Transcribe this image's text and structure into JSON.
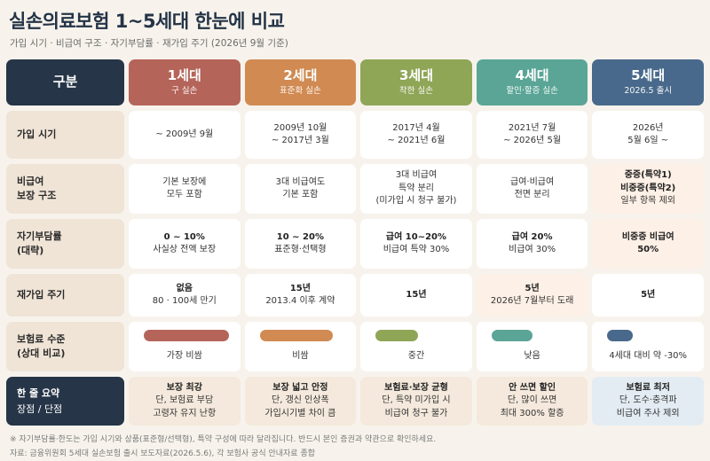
{
  "title": "실손의료보험 1~5세대 한눈에 비교",
  "subtitle": "가입 시기 · 비급여 구조 · 자기부담률 · 재가입 주기 (2026년 9월 기준)",
  "corner_label": "구분",
  "colors": {
    "gen1": "#b5645a",
    "gen2": "#d08a52",
    "gen3": "#8fa657",
    "gen4": "#5aa596",
    "gen5": "#48698b",
    "navy": "#263547",
    "label_bg": "#efe4d6"
  },
  "generations": [
    {
      "name": "1세대",
      "sub": "구 실손"
    },
    {
      "name": "2세대",
      "sub": "표준화 실손"
    },
    {
      "name": "3세대",
      "sub": "착한 실손"
    },
    {
      "name": "4세대",
      "sub": "할인·할증 실손"
    },
    {
      "name": "5세대",
      "sub": "2026.5 출시"
    }
  ],
  "rows": {
    "join_period": {
      "label": "가입 시기",
      "cells": [
        {
          "l1": "~ 2009년 9월",
          "l2": ""
        },
        {
          "l1": "2009년 10월",
          "l2": "~ 2017년 3월"
        },
        {
          "l1": "2017년 4월",
          "l2": "~ 2021년 6월"
        },
        {
          "l1": "2021년 7월",
          "l2": "~ 2026년 5월"
        },
        {
          "l1": "2026년",
          "l2": "5월 6일 ~"
        }
      ]
    },
    "noncovered": {
      "label1": "비급여",
      "label2": "보장 구조",
      "cells": [
        {
          "l1": "기본 보장에",
          "l2": "모두 포함",
          "l3": ""
        },
        {
          "l1": "3대 비급여도",
          "l2": "기본 포함",
          "l3": ""
        },
        {
          "l1": "3대 비급여",
          "l2": "특약 분리",
          "l3": "(미가입 시 청구 불가)"
        },
        {
          "l1": "급여·비급여",
          "l2": "전면 분리",
          "l3": ""
        },
        {
          "l1": "중증(특약1)",
          "l2": "비중증(특약2)",
          "l3": "일부 항목 제외"
        }
      ]
    },
    "copay": {
      "label1": "자기부담률",
      "label2": "(대략)",
      "cells": [
        {
          "l1": "0 ~ 10%",
          "l2": "사실상 전액 보장"
        },
        {
          "l1": "10 ~ 20%",
          "l2": "표준형·선택형"
        },
        {
          "l1": "급여 10~20%",
          "l2": "비급여 특약 30%"
        },
        {
          "l1": "급여 20%",
          "l2": "비급여 30%"
        },
        {
          "l1": "비중증 비급여",
          "l2": "50%"
        }
      ]
    },
    "renewal": {
      "label": "재가입 주기",
      "cells": [
        {
          "l1": "없음",
          "l2": "80 · 100세 만기"
        },
        {
          "l1": "15년",
          "l2": "2013.4 이후 계약"
        },
        {
          "l1": "15년",
          "l2": ""
        },
        {
          "l1": "5년",
          "l2": "2026년 7월부터 도래"
        },
        {
          "l1": "5년",
          "l2": ""
        }
      ]
    },
    "premium": {
      "label1": "보험료 수준",
      "label2": "(상대 비교)",
      "cells": [
        {
          "text": "가장 비쌈",
          "level": 1.0
        },
        {
          "text": "비쌈",
          "level": 0.85
        },
        {
          "text": "중간",
          "level": 0.5
        },
        {
          "text": "낮음",
          "level": 0.48
        },
        {
          "text": "4세대 대비 약 -30%",
          "level": 0.3
        }
      ]
    },
    "summary": {
      "label1": "한 줄 요약",
      "label2": "장점 / 단점",
      "cells": [
        {
          "l1": "보장 최강",
          "l2": "단, 보험료 부담",
          "l3": "고령자 유지 난항"
        },
        {
          "l1": "보장 넓고 안정",
          "l2": "단, 갱신 인상폭",
          "l3": "가입시기별 차이 큼"
        },
        {
          "l1": "보험료·보장 균형",
          "l2": "단, 특약 미가입 시",
          "l3": "비급여 청구 불가"
        },
        {
          "l1": "안 쓰면 할인",
          "l2": "단, 많이 쓰면",
          "l3": "최대 300% 할증"
        },
        {
          "l1": "보험료 최저",
          "l2": "단, 도수·충격파",
          "l3": "비급여 주사 제외"
        }
      ]
    }
  },
  "footnote": "※ 자기부담률·한도는 가입 시기와 상품(표준형/선택형), 특약 구성에 따라 달라집니다. 반드시 본인 증권과 약관으로 확인하세요.",
  "source": "자료: 금융위원회 5세대 실손보험 출시 보도자료(2026.5.6), 각 보험사 공식 안내자료 종합"
}
